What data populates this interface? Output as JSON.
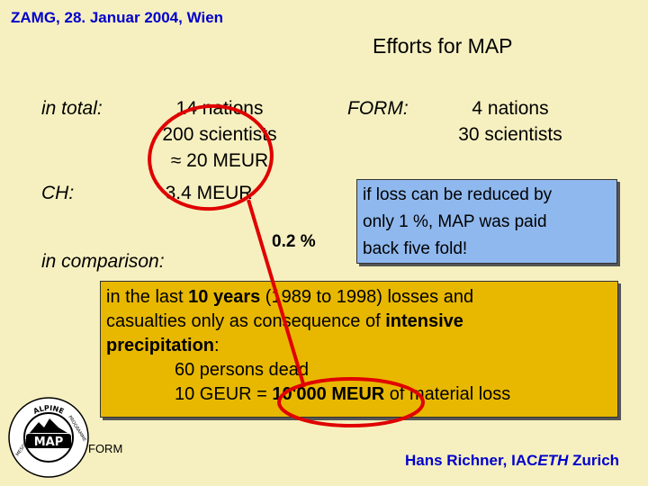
{
  "header": {
    "text": "ZAMG, 28. Januar 2004, Wien"
  },
  "title": "Efforts for MAP",
  "left": {
    "total_label": "in total:",
    "total_lines": [
      "14 nations",
      "200 scientists",
      "≈ 20 MEUR"
    ],
    "ch_label": "CH:",
    "ch_value": "3.4 MEUR",
    "comparison_label": "in comparison:",
    "percent": "0.2 %"
  },
  "form": {
    "label": "FORM:",
    "lines": [
      "4 nations",
      "30 scientists"
    ]
  },
  "bluebox": {
    "lines": [
      "if loss can be reduced by",
      "only 1 %, MAP was paid",
      "back five fold!"
    ]
  },
  "orangebox": {
    "l1_a": "in the last ",
    "l1_b": "10 years",
    "l1_c": " (1989 to 1998) losses and",
    "l2_a": "casualties only as consequence of ",
    "l2_b": "intensive",
    "l3_a": "precipitation",
    "l3_b": ":",
    "l4": "60 persons dead",
    "l5_a": "10 GEUR = ",
    "l5_b": "10'000 MEUR",
    "l5_c": " of material loss"
  },
  "logo": {
    "top_text": "ALPINE",
    "center_text": "MAP",
    "side_left": "MESOSCALE",
    "side_right": "PROGRAMME"
  },
  "footer": {
    "form_text": "FORM",
    "author_a": "Hans Richner, IAC",
    "author_b": "ETH",
    "author_c": " Zurich"
  },
  "colors": {
    "background": "#f6f0c0",
    "blue_text": "#0000cc",
    "blue_box": "#8fb8ee",
    "orange_box": "#e8b800",
    "highlight": "#e00000"
  }
}
